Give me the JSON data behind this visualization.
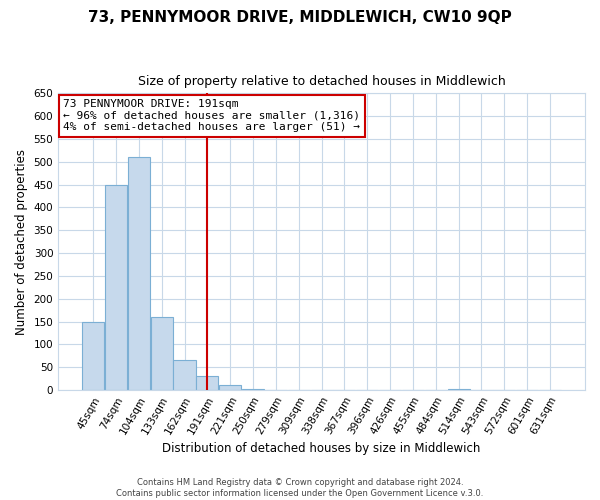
{
  "title": "73, PENNYMOOR DRIVE, MIDDLEWICH, CW10 9QP",
  "subtitle": "Size of property relative to detached houses in Middlewich",
  "xlabel": "Distribution of detached houses by size in Middlewich",
  "ylabel": "Number of detached properties",
  "footer_line1": "Contains HM Land Registry data © Crown copyright and database right 2024.",
  "footer_line2": "Contains public sector information licensed under the Open Government Licence v.3.0.",
  "bins": [
    "45sqm",
    "74sqm",
    "104sqm",
    "133sqm",
    "162sqm",
    "191sqm",
    "221sqm",
    "250sqm",
    "279sqm",
    "309sqm",
    "338sqm",
    "367sqm",
    "396sqm",
    "426sqm",
    "455sqm",
    "484sqm",
    "514sqm",
    "543sqm",
    "572sqm",
    "601sqm",
    "631sqm"
  ],
  "bar_values": [
    150,
    450,
    510,
    160,
    65,
    30,
    12,
    2,
    0,
    0,
    0,
    0,
    0,
    0,
    0,
    0,
    2,
    0,
    0,
    0,
    0
  ],
  "bar_color": "#c6d9ec",
  "bar_edge_color": "#7bafd4",
  "vline_x_index": 5,
  "vline_color": "#cc0000",
  "annotation_title": "73 PENNYMOOR DRIVE: 191sqm",
  "annotation_line2": "← 96% of detached houses are smaller (1,316)",
  "annotation_line3": "4% of semi-detached houses are larger (51) →",
  "annotation_box_color": "#ffffff",
  "annotation_box_edge_color": "#cc0000",
  "ylim": [
    0,
    650
  ],
  "yticks": [
    0,
    50,
    100,
    150,
    200,
    250,
    300,
    350,
    400,
    450,
    500,
    550,
    600,
    650
  ],
  "background_color": "#ffffff",
  "grid_color": "#c8d8e8",
  "title_fontsize": 11,
  "subtitle_fontsize": 9,
  "axis_label_fontsize": 8.5,
  "tick_fontsize": 7.5,
  "annotation_fontsize": 8
}
